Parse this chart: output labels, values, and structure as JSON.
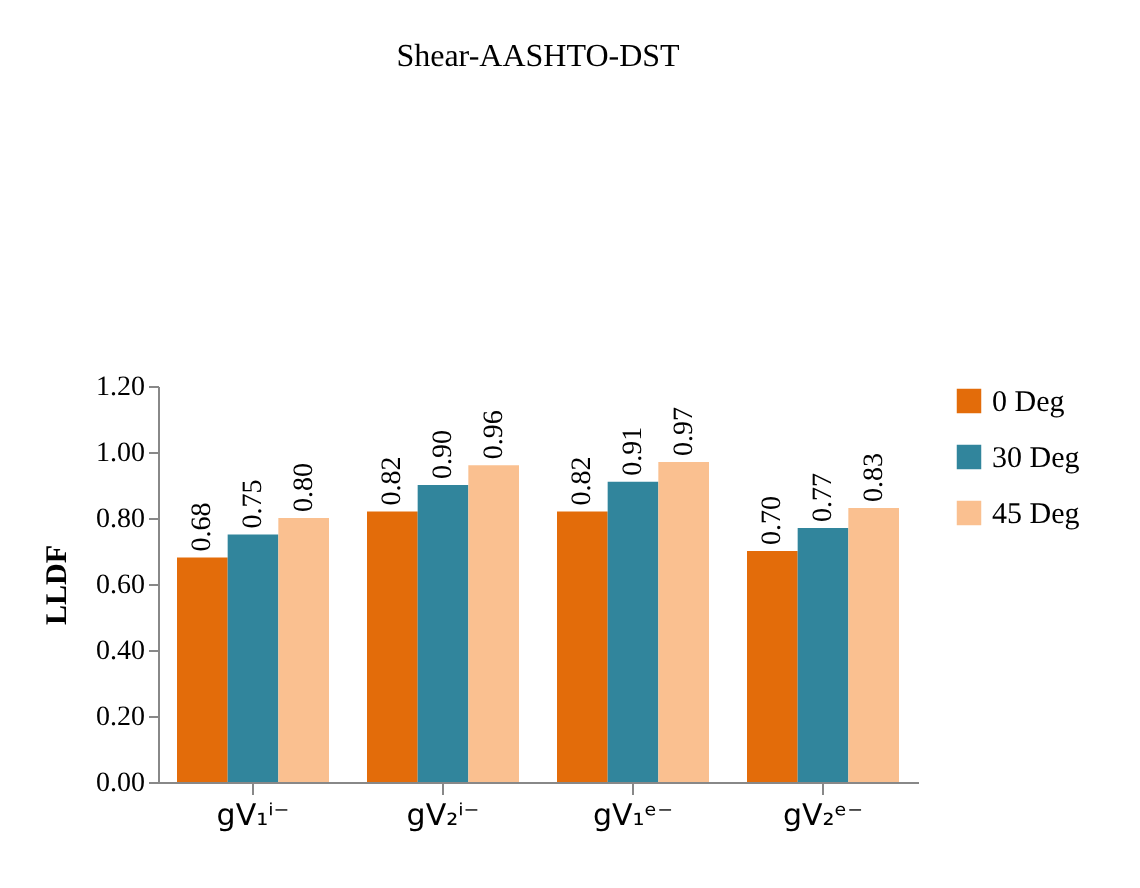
{
  "chart_data": {
    "type": "bar",
    "title": "Shear-AASHTO-DST",
    "ylabel": "LLDF",
    "categories": [
      "gV₁ⁱ⁻",
      "gV₂ⁱ⁻",
      "gV₁ᵉ⁻",
      "gV₂ᵉ⁻"
    ],
    "series": [
      {
        "name": "0 Deg",
        "color": "#e36c0a",
        "values": [
          0.68,
          0.82,
          0.82,
          0.7
        ],
        "value_labels": [
          "0.68",
          "0.82",
          "0.82",
          "0.70"
        ]
      },
      {
        "name": "30 Deg",
        "color": "#31859c",
        "values": [
          0.75,
          0.9,
          0.91,
          0.77
        ],
        "value_labels": [
          "0.75",
          "0.90",
          "0.91",
          "0.77"
        ]
      },
      {
        "name": "45 Deg",
        "color": "#fac090",
        "values": [
          0.8,
          0.96,
          0.97,
          0.83
        ],
        "value_labels": [
          "0.80",
          "0.96",
          "0.97",
          "0.83"
        ]
      }
    ],
    "ylim": [
      0,
      1.2
    ],
    "yticks": [
      {
        "value": 0,
        "label": "0.00"
      },
      {
        "value": 0.2,
        "label": "0.20"
      },
      {
        "value": 0.4,
        "label": "0.40"
      },
      {
        "value": 0.6,
        "label": "0.60"
      },
      {
        "value": 0.8,
        "label": "0.80"
      },
      {
        "value": 1.0,
        "label": "1.00"
      },
      {
        "value": 1.2,
        "label": "1.20"
      }
    ],
    "grid": false,
    "legend": "right"
  }
}
